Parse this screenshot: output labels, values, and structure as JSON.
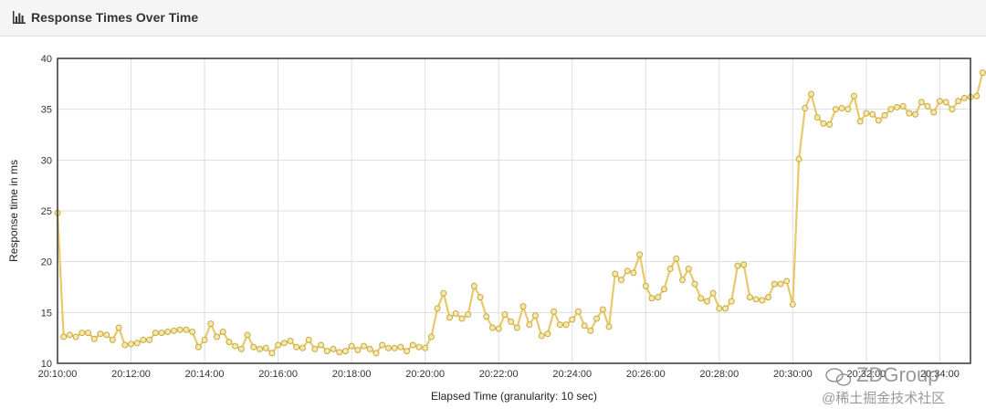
{
  "panel": {
    "title": "Response Times Over Time",
    "icon": "bar-chart-icon"
  },
  "colors": {
    "series": "#E8C96A",
    "series_marker_fill": "#F4E7B0",
    "series_marker_stroke": "#C9A93C",
    "grid": "#dddddd",
    "frame": "#333333",
    "header_bg": "#f5f5f5"
  },
  "watermark": {
    "line1": "ZDGroup",
    "line2": "@稀土掘金技术社区"
  },
  "chart_data": {
    "type": "line",
    "title": "",
    "xlabel": "Elapsed Time (granularity: 10 sec)",
    "ylabel": "Response time in ms",
    "ylim": [
      10,
      40
    ],
    "yticks": [
      10,
      15,
      20,
      25,
      30,
      35,
      40
    ],
    "xlim": [
      "20:10:00",
      "20:34:50"
    ],
    "xticks": [
      "20:10:00",
      "20:12:00",
      "20:14:00",
      "20:16:00",
      "20:18:00",
      "20:20:00",
      "20:22:00",
      "20:24:00",
      "20:26:00",
      "20:28:00",
      "20:30:00",
      "20:32:00",
      "20:34:00"
    ],
    "grid": true,
    "legend": "none",
    "granularity_sec": 10,
    "series": [
      {
        "x_start": "20:10:00",
        "values": [
          24.8,
          12.6,
          12.8,
          12.6,
          13.0,
          13.0,
          12.4,
          12.9,
          12.8,
          12.3,
          13.5,
          11.8,
          11.9,
          12.0,
          12.3,
          12.3,
          13.0,
          13.0,
          13.1,
          13.2,
          13.3,
          13.3,
          13.1,
          11.6,
          12.3,
          13.9,
          12.6,
          13.1,
          12.1,
          11.7,
          11.4,
          12.8,
          11.6,
          11.4,
          11.5,
          11.0,
          11.8,
          12.0,
          12.2,
          11.6,
          11.5,
          12.3,
          11.4,
          11.8,
          11.2,
          11.4,
          11.1,
          11.2,
          11.7,
          11.3,
          11.7,
          11.4,
          11.0,
          11.8,
          11.5,
          11.5,
          11.6,
          11.2,
          11.8,
          11.6,
          11.5,
          12.6,
          15.4,
          16.9,
          14.5,
          14.9,
          14.4,
          14.8,
          17.6,
          16.5,
          14.6,
          13.5,
          13.4,
          14.8,
          14.1,
          13.5,
          15.6,
          13.8,
          14.7,
          12.7,
          12.9,
          15.1,
          13.8,
          13.8,
          14.3,
          15.1,
          13.7,
          13.2,
          14.4,
          15.3,
          13.6,
          18.8,
          18.2,
          19.1,
          18.9,
          20.7,
          17.6,
          16.4,
          16.5,
          17.3,
          19.3,
          20.3,
          18.2,
          19.3,
          17.8,
          16.4,
          16.1,
          16.9,
          15.4,
          15.4,
          16.1,
          19.6,
          19.7,
          16.5,
          16.3,
          16.2,
          16.5,
          17.8,
          17.8,
          18.1,
          15.8,
          30.1,
          35.1,
          36.5,
          34.2,
          33.6,
          33.5,
          35.0,
          35.1,
          35.0,
          36.3,
          33.8,
          34.6,
          34.5,
          33.9,
          34.4,
          35.0,
          35.2,
          35.3,
          34.6,
          34.5,
          35.7,
          35.3,
          34.7,
          35.8,
          35.7,
          35.0,
          35.8,
          36.1,
          36.2,
          36.3,
          38.6
        ]
      }
    ]
  }
}
